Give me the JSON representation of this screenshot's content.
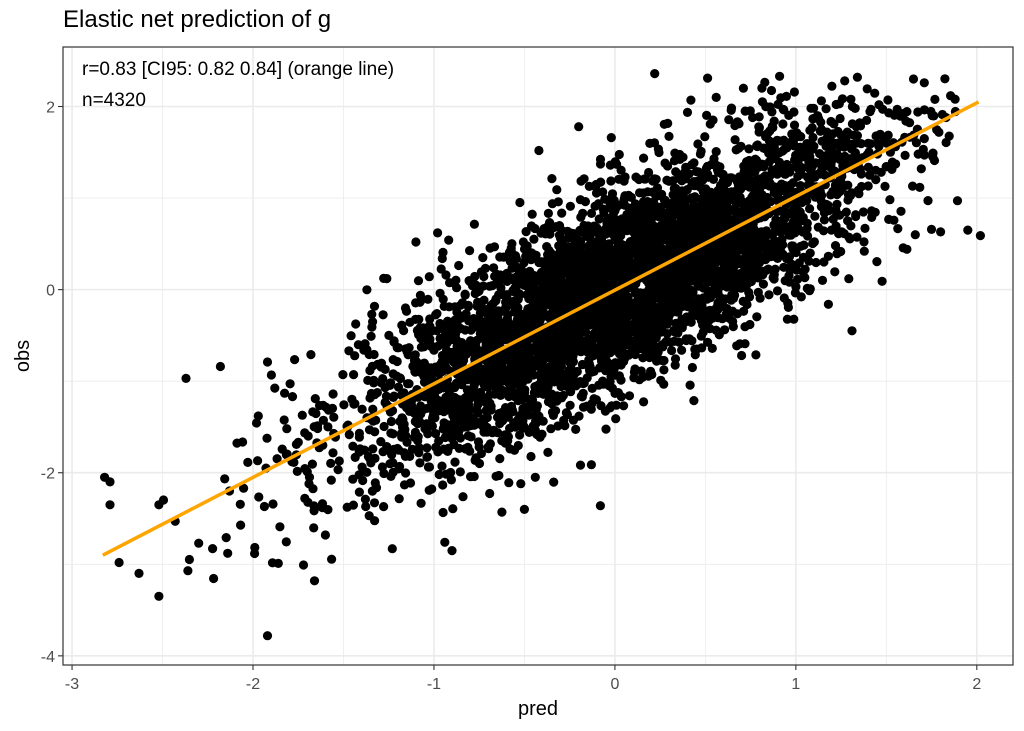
{
  "chart_data": {
    "type": "scatter",
    "title": "Elastic net prediction of g",
    "xlabel": "pred",
    "ylabel": "obs",
    "xlim": [
      -3.05,
      2.2
    ],
    "ylim": [
      -4.1,
      2.65
    ],
    "x_ticks": [
      -3,
      -2,
      -1,
      0,
      1,
      2
    ],
    "x_tick_labels": [
      "-3",
      "-2",
      "-1",
      "0",
      "1",
      "2"
    ],
    "y_ticks": [
      -4,
      -2,
      0,
      2
    ],
    "y_tick_labels": [
      "-4",
      "-2",
      "0",
      "2"
    ],
    "grid": true,
    "annotations": [
      "r=0.83 [CI95: 0.82 0.84] (orange line)",
      "n=4320"
    ],
    "point_color": "#000000",
    "line_color": "#FFA500",
    "fit_line": {
      "x": [
        -2.83,
        2.01
      ],
      "y": [
        -2.9,
        2.05
      ]
    },
    "n": 4320,
    "points": [
      [
        -1.92,
        -3.78
      ],
      [
        -2.52,
        -3.35
      ],
      [
        -2.79,
        -2.1
      ],
      [
        -2.82,
        -2.05
      ],
      [
        -2.79,
        -2.35
      ],
      [
        -2.74,
        -2.98
      ],
      [
        -2.63,
        -3.1
      ],
      [
        -2.36,
        -3.07
      ],
      [
        -2.37,
        -0.97
      ],
      [
        -2.18,
        -0.84
      ],
      [
        -1.92,
        -0.79
      ],
      [
        -1.68,
        -0.71
      ],
      [
        -1.66,
        -3.18
      ],
      [
        -0.94,
        -2.76
      ],
      [
        -0.52,
        -2.12
      ],
      [
        -0.08,
        -2.36
      ],
      [
        0.22,
        2.36
      ],
      [
        0.42,
        2.07
      ],
      [
        0.56,
        2.1
      ],
      [
        0.71,
        2.2
      ],
      [
        0.91,
        2.33
      ],
      [
        1.27,
        2.28
      ],
      [
        1.34,
        2.32
      ],
      [
        1.65,
        2.3
      ],
      [
        1.95,
        0.65
      ],
      [
        2.02,
        0.59
      ],
      [
        1.8,
        0.63
      ],
      [
        1.66,
        0.6
      ],
      [
        1.31,
        -0.45
      ],
      [
        1.18,
        -0.16
      ],
      [
        1.03,
        -0.08
      ],
      [
        0.7,
        -0.72
      ],
      [
        -0.42,
        1.52
      ],
      [
        -0.2,
        1.78
      ],
      [
        -0.02,
        1.66
      ],
      [
        -0.73,
        0.35
      ],
      [
        -0.98,
        0.62
      ],
      [
        -1.1,
        0.52
      ],
      [
        -0.9,
        -2.85
      ],
      [
        -1.23,
        -2.83
      ],
      [
        -1.86,
        -2.99
      ],
      [
        -1.6,
        -2.68
      ],
      [
        -0.5,
        -2.4
      ],
      [
        -0.44,
        -2.05
      ],
      [
        -2.52,
        -2.35
      ],
      [
        -2.43,
        -2.53
      ],
      [
        -2.3,
        -2.77
      ],
      [
        -2.14,
        -2.88
      ],
      [
        1.71,
        1.65
      ],
      [
        1.83,
        1.88
      ],
      [
        1.88,
        2.08
      ],
      [
        1.48,
        1.97
      ],
      [
        1.12,
        1.9
      ],
      [
        0.93,
        1.97
      ],
      [
        0.85,
        1.49
      ],
      [
        0.72,
        1.95
      ]
    ]
  }
}
